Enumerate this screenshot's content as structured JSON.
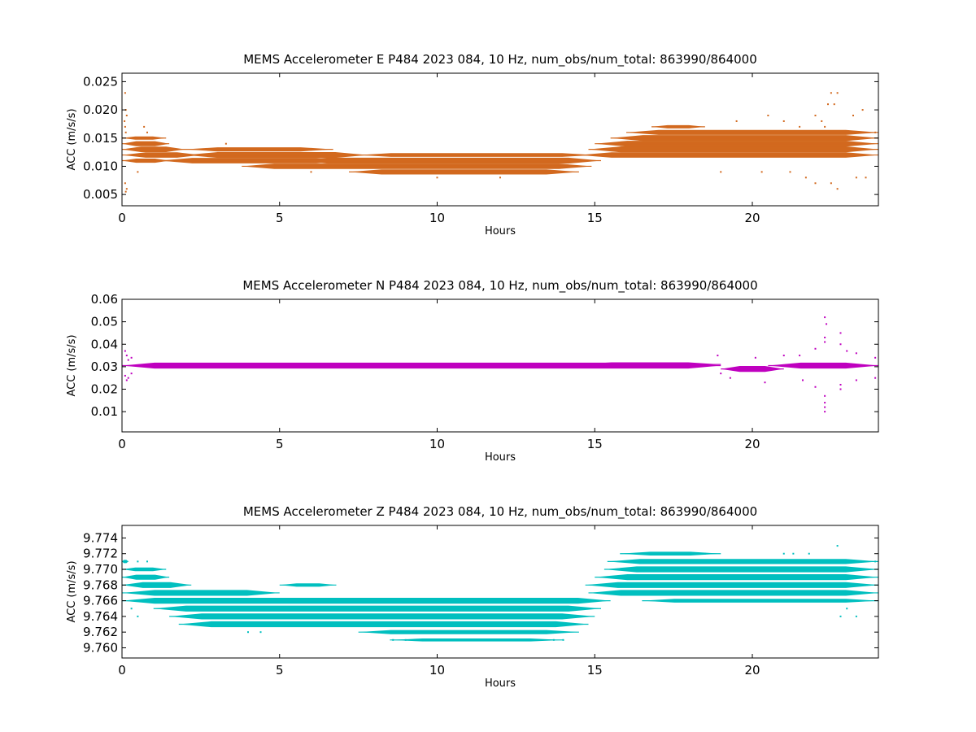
{
  "chart_data": [
    {
      "type": "scatter",
      "title": "MEMS Accelerometer E P484 2023 084, 10 Hz, num_obs/num_total: 863990/864000",
      "xlabel": "Hours",
      "ylabel": "ACC (m/s/s)",
      "xlim": [
        0,
        24
      ],
      "ylim": [
        0.003,
        0.0265
      ],
      "xticks": [
        0,
        5,
        10,
        15,
        20
      ],
      "xtick_labels": [
        "0",
        "5",
        "10",
        "15",
        "20"
      ],
      "yticks": [
        0.005,
        0.01,
        0.015,
        0.02,
        0.025
      ],
      "ytick_labels": [
        "0.005",
        "0.010",
        "0.015",
        "0.020",
        "0.025"
      ],
      "color": "#d2691e",
      "grid": false,
      "bands": [
        {
          "y": 0.011,
          "x": [
            0.0,
            1.5
          ],
          "w": 0.6
        },
        {
          "y": 0.012,
          "x": [
            0.0,
            2.5
          ],
          "w": 0.9
        },
        {
          "y": 0.013,
          "x": [
            0.0,
            2.0
          ],
          "w": 0.9
        },
        {
          "y": 0.014,
          "x": [
            0.0,
            1.5
          ],
          "w": 0.8
        },
        {
          "y": 0.015,
          "x": [
            0.0,
            1.4
          ],
          "w": 0.4
        },
        {
          "y": 0.011,
          "x": [
            1.2,
            7.2
          ],
          "w": 0.9
        },
        {
          "y": 0.012,
          "x": [
            2.0,
            7.8
          ],
          "w": 1.0
        },
        {
          "y": 0.013,
          "x": [
            2.0,
            6.7
          ],
          "w": 0.6
        },
        {
          "y": 0.01,
          "x": [
            3.8,
            14.9
          ],
          "w": 0.9
        },
        {
          "y": 0.011,
          "x": [
            5.5,
            15.2
          ],
          "w": 1.0
        },
        {
          "y": 0.012,
          "x": [
            7.5,
            15.0
          ],
          "w": 0.5
        },
        {
          "y": 0.009,
          "x": [
            7.2,
            14.5
          ],
          "w": 0.8
        },
        {
          "y": 0.012,
          "x": [
            14.5,
            24.0
          ],
          "w": 0.9
        },
        {
          "y": 0.013,
          "x": [
            14.8,
            24.0
          ],
          "w": 1.0
        },
        {
          "y": 0.014,
          "x": [
            15.0,
            24.0
          ],
          "w": 1.0
        },
        {
          "y": 0.015,
          "x": [
            15.5,
            24.0
          ],
          "w": 1.0
        },
        {
          "y": 0.016,
          "x": [
            16.0,
            24.0
          ],
          "w": 0.8
        },
        {
          "y": 0.017,
          "x": [
            16.8,
            18.5
          ],
          "w": 0.4
        }
      ],
      "outliers": [
        [
          0.1,
          0.023
        ],
        [
          0.12,
          0.02
        ],
        [
          0.15,
          0.019
        ],
        [
          0.08,
          0.018
        ],
        [
          0.1,
          0.017
        ],
        [
          0.12,
          0.016
        ],
        [
          0.1,
          0.007
        ],
        [
          0.15,
          0.006
        ],
        [
          0.12,
          0.0055
        ],
        [
          0.5,
          0.009
        ],
        [
          0.7,
          0.017
        ],
        [
          0.8,
          0.016
        ],
        [
          5.0,
          0.013
        ],
        [
          3.3,
          0.014
        ],
        [
          6.0,
          0.009
        ],
        [
          10.0,
          0.008
        ],
        [
          12.0,
          0.008
        ],
        [
          19.0,
          0.009
        ],
        [
          19.5,
          0.018
        ],
        [
          20.5,
          0.019
        ],
        [
          21.0,
          0.018
        ],
        [
          21.5,
          0.017
        ],
        [
          22.0,
          0.019
        ],
        [
          22.2,
          0.018
        ],
        [
          22.5,
          0.023
        ],
        [
          22.7,
          0.023
        ],
        [
          22.4,
          0.021
        ],
        [
          22.6,
          0.021
        ],
        [
          22.5,
          0.007
        ],
        [
          22.7,
          0.006
        ],
        [
          21.7,
          0.008
        ],
        [
          22.0,
          0.007
        ],
        [
          23.2,
          0.019
        ],
        [
          23.5,
          0.02
        ],
        [
          23.3,
          0.008
        ],
        [
          23.6,
          0.008
        ],
        [
          21.2,
          0.009
        ],
        [
          20.3,
          0.009
        ],
        [
          23.9,
          0.016
        ],
        [
          22.3,
          0.017
        ]
      ]
    },
    {
      "type": "scatter",
      "title": "MEMS Accelerometer N P484 2023 084, 10 Hz, num_obs/num_total: 863990/864000",
      "xlabel": "Hours",
      "ylabel": "ACC (m/s/s)",
      "xlim": [
        0,
        24
      ],
      "ylim": [
        0.001,
        0.06
      ],
      "xticks": [
        0,
        5,
        10,
        15,
        20
      ],
      "xtick_labels": [
        "0",
        "5",
        "10",
        "15",
        "20"
      ],
      "yticks": [
        0.01,
        0.02,
        0.03,
        0.04,
        0.05,
        0.06
      ],
      "ytick_labels": [
        "0.01",
        "0.02",
        "0.03",
        "0.04",
        "0.05",
        "0.06"
      ],
      "color": "#bf00bf",
      "grid": false,
      "bands": [
        {
          "y": 0.0305,
          "x": [
            0.0,
            19.0
          ],
          "w": 1.0
        },
        {
          "y": 0.031,
          "x": [
            14.5,
            19.0
          ],
          "w": 0.6
        },
        {
          "y": 0.029,
          "x": [
            19.0,
            21.0
          ],
          "w": 1.0
        },
        {
          "y": 0.0305,
          "x": [
            20.5,
            24.0
          ],
          "w": 1.0
        }
      ],
      "outliers": [
        [
          0.1,
          0.037
        ],
        [
          0.15,
          0.035
        ],
        [
          0.2,
          0.033
        ],
        [
          0.1,
          0.026
        ],
        [
          0.15,
          0.024
        ],
        [
          0.2,
          0.025
        ],
        [
          0.3,
          0.034
        ],
        [
          0.3,
          0.027
        ],
        [
          18.9,
          0.035
        ],
        [
          19.0,
          0.027
        ],
        [
          19.3,
          0.025
        ],
        [
          20.1,
          0.034
        ],
        [
          20.4,
          0.023
        ],
        [
          21.0,
          0.035
        ],
        [
          21.5,
          0.035
        ],
        [
          21.6,
          0.024
        ],
        [
          22.3,
          0.052
        ],
        [
          22.35,
          0.049
        ],
        [
          22.3,
          0.043
        ],
        [
          22.3,
          0.041
        ],
        [
          22.3,
          0.017
        ],
        [
          22.3,
          0.014
        ],
        [
          22.3,
          0.012
        ],
        [
          22.3,
          0.01
        ],
        [
          22.8,
          0.045
        ],
        [
          22.8,
          0.04
        ],
        [
          22.8,
          0.02
        ],
        [
          22.8,
          0.022
        ],
        [
          23.0,
          0.037
        ],
        [
          23.3,
          0.036
        ],
        [
          23.3,
          0.024
        ],
        [
          23.9,
          0.034
        ],
        [
          23.9,
          0.025
        ],
        [
          22.0,
          0.038
        ],
        [
          22.0,
          0.021
        ]
      ]
    },
    {
      "type": "scatter",
      "title": "MEMS Accelerometer Z P484 2023 084, 10 Hz, num_obs/num_total: 863990/864000",
      "xlabel": "Hours",
      "ylabel": "ACC (m/s/s)",
      "xlim": [
        0,
        24
      ],
      "ylim": [
        9.7587,
        9.7756
      ],
      "xticks": [
        0,
        5,
        10,
        15,
        20
      ],
      "xtick_labels": [
        "0",
        "5",
        "10",
        "15",
        "20"
      ],
      "yticks": [
        9.76,
        9.762,
        9.764,
        9.766,
        9.768,
        9.77,
        9.772,
        9.774
      ],
      "ytick_labels": [
        "9.760",
        "9.762",
        "9.764",
        "9.766",
        "9.768",
        "9.770",
        "9.772",
        "9.774"
      ],
      "color": "#00bfbf",
      "grid": false,
      "bands": [
        {
          "y": 9.771,
          "x": [
            0.0,
            0.2
          ],
          "w": 0.4
        },
        {
          "y": 9.77,
          "x": [
            0.0,
            1.4
          ],
          "w": 0.5
        },
        {
          "y": 9.769,
          "x": [
            0.0,
            1.5
          ],
          "w": 0.8
        },
        {
          "y": 9.768,
          "x": [
            0.0,
            2.2
          ],
          "w": 1.0
        },
        {
          "y": 9.767,
          "x": [
            0.0,
            5.0
          ],
          "w": 1.0
        },
        {
          "y": 9.766,
          "x": [
            0.0,
            15.5
          ],
          "w": 1.0
        },
        {
          "y": 9.765,
          "x": [
            1.0,
            15.2
          ],
          "w": 1.0
        },
        {
          "y": 9.764,
          "x": [
            1.5,
            15.0
          ],
          "w": 1.0
        },
        {
          "y": 9.763,
          "x": [
            1.8,
            14.8
          ],
          "w": 1.0
        },
        {
          "y": 9.762,
          "x": [
            7.5,
            14.5
          ],
          "w": 0.6
        },
        {
          "y": 9.767,
          "x": [
            14.8,
            24.0
          ],
          "w": 1.0
        },
        {
          "y": 9.768,
          "x": [
            14.7,
            24.0
          ],
          "w": 1.0
        },
        {
          "y": 9.769,
          "x": [
            15.0,
            24.0
          ],
          "w": 1.0
        },
        {
          "y": 9.77,
          "x": [
            15.3,
            24.0
          ],
          "w": 1.0
        },
        {
          "y": 9.771,
          "x": [
            15.4,
            24.0
          ],
          "w": 0.8
        },
        {
          "y": 9.772,
          "x": [
            15.8,
            19.0
          ],
          "w": 0.5
        },
        {
          "y": 9.766,
          "x": [
            16.5,
            24.0
          ],
          "w": 0.5
        },
        {
          "y": 9.768,
          "x": [
            5.0,
            6.8
          ],
          "w": 0.4
        },
        {
          "y": 9.761,
          "x": [
            8.5,
            14.0
          ],
          "w": 0.3
        }
      ],
      "outliers": [
        [
          0.1,
          9.771
        ],
        [
          0.5,
          9.771
        ],
        [
          0.8,
          9.771
        ],
        [
          0.3,
          9.765
        ],
        [
          0.5,
          9.764
        ],
        [
          4.0,
          9.762
        ],
        [
          4.4,
          9.762
        ],
        [
          8.6,
          9.761
        ],
        [
          9.0,
          9.761
        ],
        [
          13.7,
          9.761
        ],
        [
          14.0,
          9.761
        ],
        [
          19.0,
          9.766
        ],
        [
          20.5,
          9.766
        ],
        [
          21.5,
          9.766
        ],
        [
          21.0,
          9.772
        ],
        [
          21.3,
          9.772
        ],
        [
          21.8,
          9.772
        ],
        [
          22.7,
          9.773
        ],
        [
          22.8,
          9.764
        ],
        [
          23.0,
          9.765
        ],
        [
          23.3,
          9.764
        ],
        [
          17.5,
          9.772
        ],
        [
          18.5,
          9.772
        ],
        [
          23.9,
          9.771
        ]
      ]
    }
  ]
}
